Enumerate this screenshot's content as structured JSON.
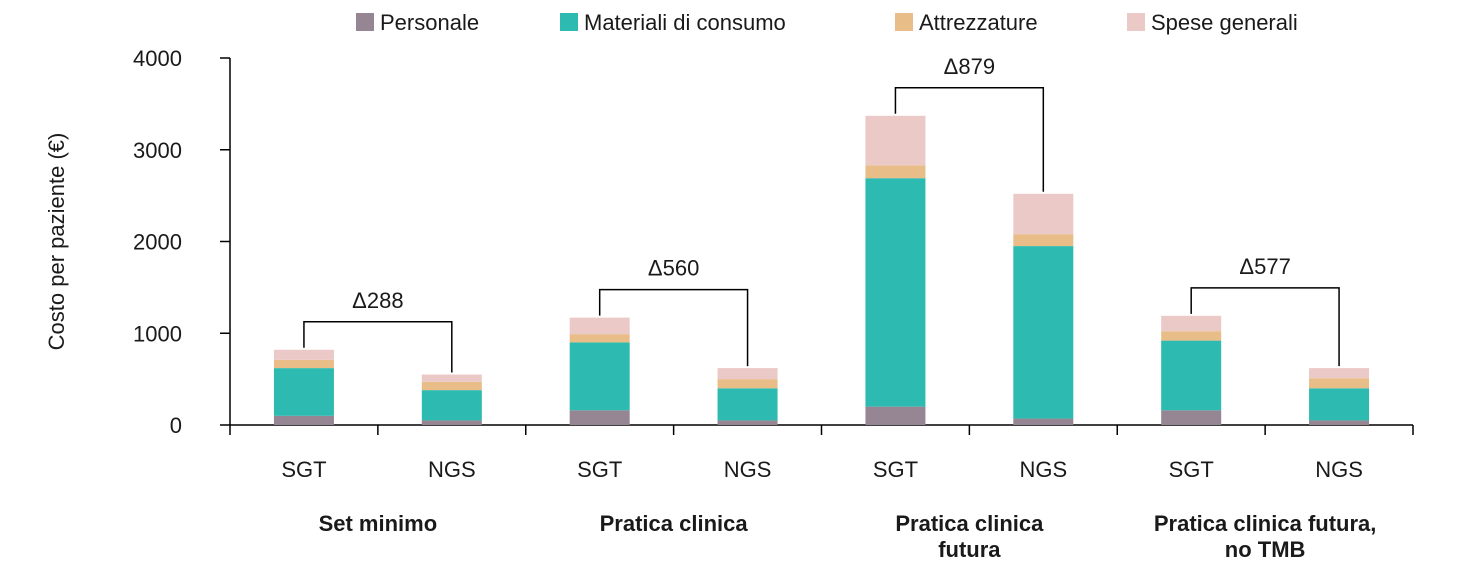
{
  "chart_data": {
    "type": "bar",
    "stacked": true,
    "ylabel": "Costo per paziente (€)",
    "ylim": [
      0,
      4000
    ],
    "yticks": [
      0,
      1000,
      2000,
      3000,
      4000
    ],
    "legend_position": "top",
    "colors": {
      "Personale": "#968592",
      "Materiali di consumo": "#2dbab1",
      "Attrezzature": "#e8bd88",
      "Spese generali": "#ebc9c6"
    },
    "series_order": [
      "Personale",
      "Materiali di consumo",
      "Attrezzature",
      "Spese generali"
    ],
    "groups": [
      {
        "label": "Set minimo",
        "delta": "Δ288",
        "bars": [
          {
            "category": "SGT",
            "values": {
              "Personale": 100,
              "Materiali di consumo": 520,
              "Attrezzature": 90,
              "Spese generali": 110
            }
          },
          {
            "category": "NGS",
            "values": {
              "Personale": 50,
              "Materiali di consumo": 330,
              "Attrezzature": 90,
              "Spese generali": 80
            }
          }
        ]
      },
      {
        "label": "Pratica clinica",
        "delta": "Δ560",
        "bars": [
          {
            "category": "SGT",
            "values": {
              "Personale": 160,
              "Materiali di consumo": 740,
              "Attrezzature": 90,
              "Spese generali": 180
            }
          },
          {
            "category": "NGS",
            "values": {
              "Personale": 50,
              "Materiali di consumo": 350,
              "Attrezzature": 100,
              "Spese generali": 120
            }
          }
        ]
      },
      {
        "label": "Pratica clinica futura",
        "delta": "Δ879",
        "bars": [
          {
            "category": "SGT",
            "values": {
              "Personale": 200,
              "Materiali di consumo": 2490,
              "Attrezzature": 140,
              "Spese generali": 540
            }
          },
          {
            "category": "NGS",
            "values": {
              "Personale": 70,
              "Materiali di consumo": 1880,
              "Attrezzature": 130,
              "Spese generali": 440
            }
          }
        ]
      },
      {
        "label": "Pratica clinica futura, no TMB",
        "delta": "Δ577",
        "bars": [
          {
            "category": "SGT",
            "values": {
              "Personale": 160,
              "Materiali di consumo": 760,
              "Attrezzature": 100,
              "Spese generali": 170
            }
          },
          {
            "category": "NGS",
            "values": {
              "Personale": 50,
              "Materiali di consumo": 350,
              "Attrezzature": 110,
              "Spese generali": 110
            }
          }
        ]
      }
    ]
  }
}
